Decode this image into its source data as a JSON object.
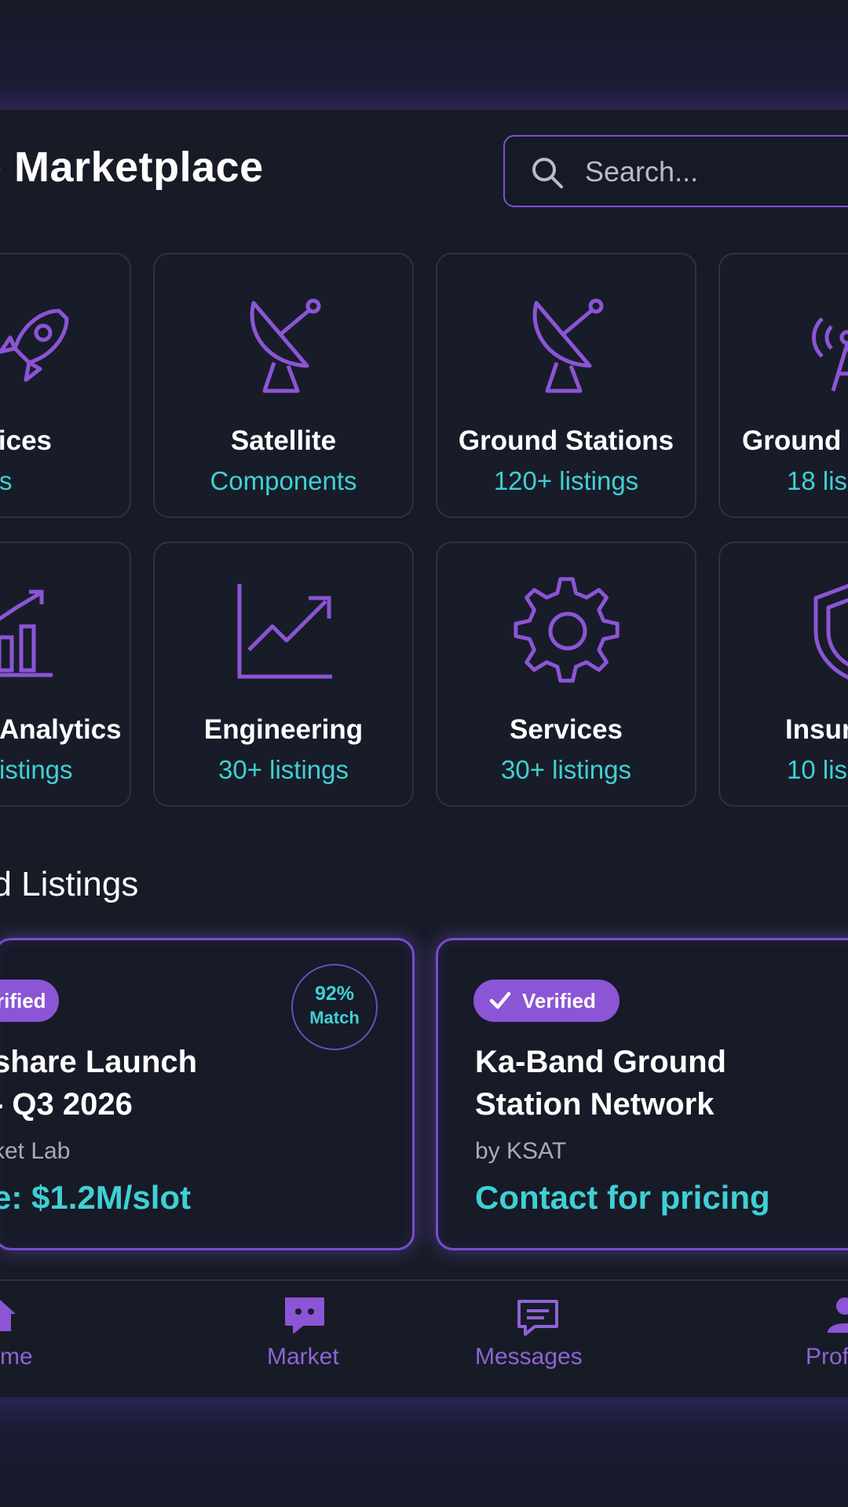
{
  "header": {
    "title": "e Marketplace",
    "search_placeholder": "Search..."
  },
  "categories": [
    {
      "title": "Services",
      "subtitle": "istings",
      "icon": "rocket-icon"
    },
    {
      "title": "Satellite",
      "subtitle": "Components",
      "icon": "satellite-dish-icon"
    },
    {
      "title": "Ground Stations",
      "subtitle": "120+ listings",
      "icon": "satellite-dish-icon"
    },
    {
      "title": "Ground",
      "subtitle": "18 lis",
      "icon": "radio-tower-icon"
    },
    {
      "title": "Analytics",
      "subtitle": "istings",
      "icon": "bar-chart-icon"
    },
    {
      "title": "Engineering",
      "subtitle": "30+ listings",
      "icon": "trend-chart-icon"
    },
    {
      "title": "Services",
      "subtitle": "30+ listings",
      "icon": "gear-icon"
    },
    {
      "title": "Insur",
      "subtitle": "10 lis",
      "icon": "shield-icon"
    }
  ],
  "featured": {
    "title": "ed Listings",
    "listings": [
      {
        "badge": "rified",
        "match_pct": "92%",
        "match_label": "Match",
        "title_line1": "share Launch",
        "title_line2": " - Q3 2026",
        "provider": "ket Lab",
        "price": "e: $1.2M/slot"
      },
      {
        "badge": "Verified",
        "title_line1": "Ka-Band Ground",
        "title_line2": "Station Network",
        "provider": "by KSAT",
        "price": "Contact for pricing"
      }
    ]
  },
  "nav": {
    "items": [
      {
        "label": "me",
        "icon": "home-icon"
      },
      {
        "label": "Market",
        "icon": "chat-bubble-icon"
      },
      {
        "label": "Messages",
        "icon": "message-icon"
      },
      {
        "label": "Prof",
        "icon": "user-icon"
      }
    ]
  },
  "colors": {
    "background": "#171b26",
    "accent_purple": "#8b55d6",
    "accent_cyan": "#3fd0d4",
    "card_border": "#2e3240"
  }
}
